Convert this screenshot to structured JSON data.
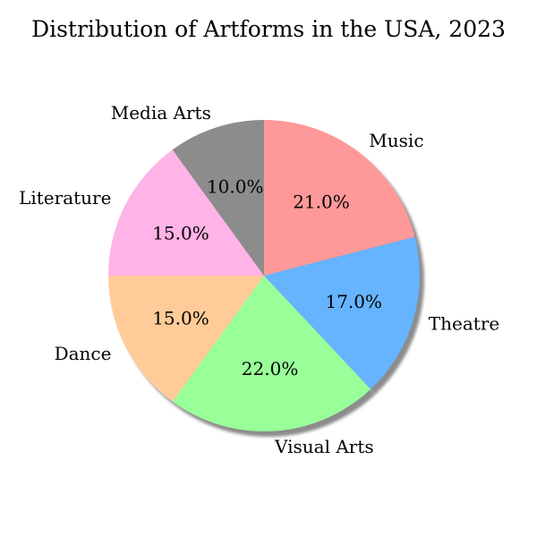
{
  "chart_data": {
    "type": "pie",
    "title": "Distribution of Artforms in the USA, 2023",
    "slices": [
      {
        "label": "Music",
        "value": 21.0,
        "pct_label": "21.0%",
        "color": "#ff9999"
      },
      {
        "label": "Theatre",
        "value": 17.0,
        "pct_label": "17.0%",
        "color": "#66b3ff"
      },
      {
        "label": "Visual Arts",
        "value": 22.0,
        "pct_label": "22.0%",
        "color": "#99ff99"
      },
      {
        "label": "Dance",
        "value": 15.0,
        "pct_label": "15.0%",
        "color": "#ffcc99"
      },
      {
        "label": "Literature",
        "value": 15.0,
        "pct_label": "15.0%",
        "color": "#ffb3e6"
      },
      {
        "label": "Media Arts",
        "value": 10.0,
        "pct_label": "10.0%",
        "color": "#8c8c8c"
      }
    ],
    "start_angle_deg": 90,
    "direction": "clockwise",
    "shadow": true
  }
}
